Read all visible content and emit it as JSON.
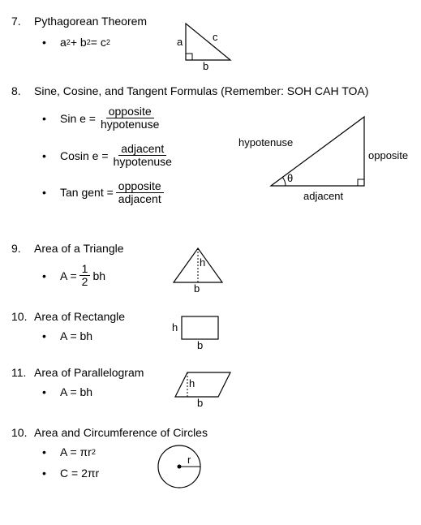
{
  "sections": [
    {
      "num": "7.",
      "title": "Pythagorean Theorem",
      "formulas": [
        {
          "html": "a<sup>2</sup> + b<sup>2</sup> = c<sup>2</sup>"
        }
      ],
      "diagram": {
        "type": "right-triangle-abc",
        "stroke": "#000",
        "labels": {
          "a": "a",
          "b": "b",
          "c": "c"
        }
      }
    },
    {
      "num": "8.",
      "title": "Sine, Cosine, and Tangent Formulas (Remember: SOH CAH TOA)",
      "formulas": [
        {
          "lhs": "Sin e =",
          "frac": [
            "opposite",
            "hypotenuse"
          ]
        },
        {
          "lhs": "Cosin e =",
          "frac": [
            "adjacent",
            "hypotenuse"
          ]
        },
        {
          "lhs": "Tan gent =",
          "frac": [
            "opposite",
            "adjacent"
          ]
        }
      ],
      "diagram": {
        "type": "right-triangle-trig",
        "stroke": "#000",
        "labels": {
          "hypotenuse": "hypotenuse",
          "opposite": "opposite",
          "adjacent": "adjacent",
          "theta": "θ"
        }
      }
    },
    {
      "num": "9.",
      "title": "Area of a Triangle",
      "formulas": [
        {
          "html": "A = <span class='frac'><span class='top'>1</span><span class='bot'>2</span></span>bh"
        }
      ],
      "diagram": {
        "type": "iso-triangle",
        "stroke": "#000",
        "labels": {
          "b": "b",
          "h": "h"
        }
      }
    },
    {
      "num": "10.",
      "title": "Area of Rectangle",
      "formulas": [
        {
          "html": "A = bh"
        }
      ],
      "diagram": {
        "type": "rectangle",
        "stroke": "#000",
        "labels": {
          "b": "b",
          "h": "h"
        }
      }
    },
    {
      "num": "11.",
      "title": "Area of Parallelogram",
      "formulas": [
        {
          "html": "A = bh"
        }
      ],
      "diagram": {
        "type": "parallelogram",
        "stroke": "#000",
        "labels": {
          "b": "b",
          "h": "h"
        }
      }
    },
    {
      "num": "10.",
      "title": "Area and Circumference of Circles",
      "formulas": [
        {
          "html": "A = πr<sup>2</sup>"
        },
        {
          "html": "C = 2πr"
        }
      ],
      "diagram": {
        "type": "circle",
        "stroke": "#000",
        "labels": {
          "r": "r"
        }
      }
    }
  ],
  "colors": {
    "stroke": "#000000",
    "bg": "#ffffff"
  }
}
